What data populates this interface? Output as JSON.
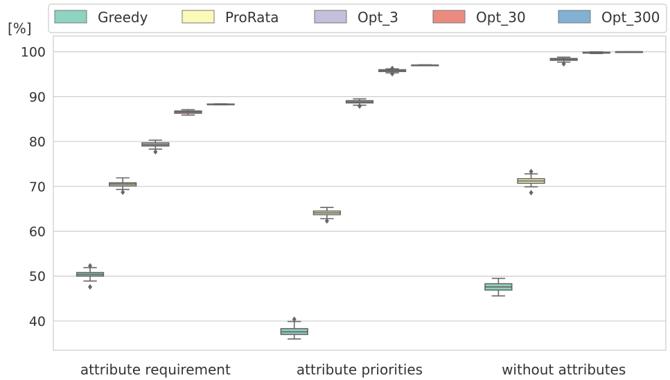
{
  "chart_data": {
    "type": "box",
    "y_unit_label": "[%]",
    "ylim": [
      33.5,
      103.5
    ],
    "yticks": [
      40,
      50,
      60,
      70,
      80,
      90,
      100
    ],
    "grid": "horizontal",
    "legend_position": "top",
    "categories": [
      "attribute requirement",
      "attribute priorities",
      "without attributes"
    ],
    "series": [
      {
        "name": "Greedy",
        "color": "#8fd3c2",
        "boxes": [
          {
            "whislo": 48.9,
            "q1": 50.0,
            "med": 50.4,
            "q3": 50.8,
            "whishi": 51.9,
            "fliers": [
              47.6,
              52.3
            ]
          },
          {
            "whislo": 36.0,
            "q1": 37.0,
            "med": 37.6,
            "q3": 38.3,
            "whishi": 39.9,
            "fliers": [
              40.4
            ]
          },
          {
            "whislo": 45.6,
            "q1": 46.9,
            "med": 47.6,
            "q3": 48.3,
            "whishi": 49.5,
            "fliers": []
          }
        ]
      },
      {
        "name": "ProRata",
        "color": "#fbfbb9",
        "boxes": [
          {
            "whislo": 69.3,
            "q1": 70.1,
            "med": 70.5,
            "q3": 70.8,
            "whishi": 71.9,
            "fliers": [
              68.7
            ]
          },
          {
            "whislo": 62.8,
            "q1": 63.7,
            "med": 64.1,
            "q3": 64.5,
            "whishi": 65.3,
            "fliers": [
              62.3
            ]
          },
          {
            "whislo": 69.9,
            "q1": 70.7,
            "med": 71.2,
            "q3": 71.7,
            "whishi": 72.8,
            "fliers": [
              68.6,
              73.3
            ]
          }
        ]
      },
      {
        "name": "Opt_3",
        "color": "#c4bfdb",
        "boxes": [
          {
            "whislo": 78.3,
            "q1": 79.0,
            "med": 79.3,
            "q3": 79.7,
            "whishi": 80.3,
            "fliers": [
              77.7
            ]
          },
          {
            "whislo": 88.1,
            "q1": 88.6,
            "med": 88.8,
            "q3": 89.1,
            "whishi": 89.5,
            "fliers": [
              87.9
            ]
          },
          {
            "whislo": 97.7,
            "q1": 98.1,
            "med": 98.3,
            "q3": 98.5,
            "whishi": 98.8,
            "fliers": [
              97.3
            ]
          }
        ]
      },
      {
        "name": "Opt_30",
        "color": "#eb8b7f",
        "boxes": [
          {
            "whislo": 85.9,
            "q1": 86.3,
            "med": 86.6,
            "q3": 86.8,
            "whishi": 87.1,
            "fliers": []
          },
          {
            "whislo": 95.3,
            "q1": 95.6,
            "med": 95.8,
            "q3": 96.0,
            "whishi": 96.2,
            "fliers": [
              95.1,
              96.3
            ]
          },
          {
            "whislo": 99.6,
            "q1": 99.7,
            "med": 99.8,
            "q3": 99.9,
            "whishi": 100.0,
            "fliers": []
          }
        ]
      },
      {
        "name": "Opt_300",
        "color": "#83b1d3",
        "boxes": [
          {
            "whislo": 88.2,
            "q1": 88.25,
            "med": 88.3,
            "q3": 88.35,
            "whishi": 88.4,
            "fliers": []
          },
          {
            "whislo": 96.9,
            "q1": 96.95,
            "med": 97.0,
            "q3": 97.05,
            "whishi": 97.1,
            "fliers": []
          },
          {
            "whislo": 99.95,
            "q1": 99.97,
            "med": 100.0,
            "q3": 100.0,
            "whishi": 100.0,
            "fliers": []
          }
        ]
      }
    ]
  }
}
